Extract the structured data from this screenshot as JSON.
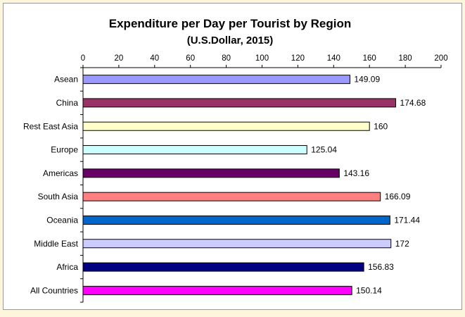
{
  "chart_data": {
    "type": "bar",
    "orientation": "horizontal",
    "title_line1": "Expenditure per Day per Tourist by Region",
    "title_line2": "(U.S.Dollar, 2015)",
    "categories": [
      "Asean",
      "China",
      "Rest East Asia",
      "Europe",
      "Americas",
      "South Asia",
      "Oceania",
      "Middle East",
      "Africa",
      "All Countries"
    ],
    "values": [
      149.09,
      174.68,
      160,
      125.04,
      143.16,
      166.09,
      171.44,
      172,
      156.83,
      150.14
    ],
    "value_labels": [
      "149.09",
      "174.68",
      "160",
      "125.04",
      "143.16",
      "166.09",
      "171.44",
      "172",
      "156.83",
      "150.14"
    ],
    "colors": [
      "#9999ff",
      "#993366",
      "#ffffcc",
      "#ccffff",
      "#660066",
      "#ff8080",
      "#0066cc",
      "#ccccff",
      "#000080",
      "#ff00ff"
    ],
    "xlim": [
      0,
      200
    ],
    "xticks": [
      "0",
      "20",
      "40",
      "60",
      "80",
      "100",
      "120",
      "140",
      "160",
      "180",
      "200"
    ],
    "axis_position": "top",
    "grid": false,
    "legend": "none"
  }
}
